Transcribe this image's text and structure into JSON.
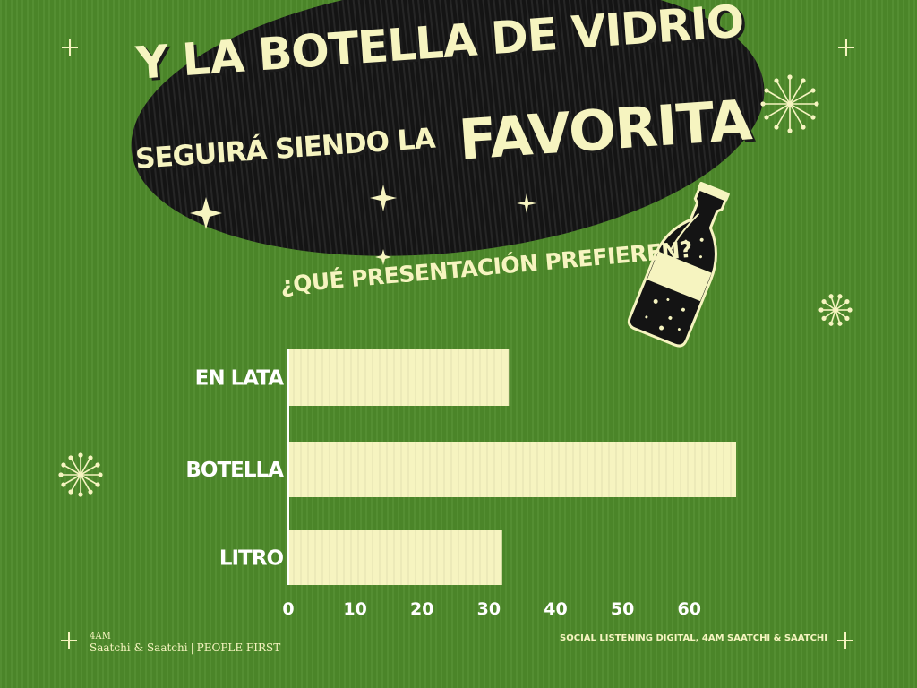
{
  "title": {
    "line1": "Y LA BOTELLA DE VIDRIO",
    "line2": "SEGUIRÁ SIENDO LA",
    "line3": "FAVORITA"
  },
  "subtitle": "¿QUÉ PRESENTACIÓN PREFIEREN?",
  "footer": {
    "brand_top": "4AM",
    "brand_main": "Saatchi & Saatchi",
    "brand_sep": "|",
    "brand_tagline": "PEOPLE FIRST",
    "source": "SOCIAL LISTENING DIGITAL, 4AM SAATCHI & SAATCHI"
  },
  "colors": {
    "background": "#4e8a2a",
    "bar": "#f6f4c0",
    "ellipse": "#141414",
    "text": "#f6f4c0"
  },
  "chart_data": {
    "type": "bar",
    "orientation": "horizontal",
    "categories": [
      "EN LATA",
      "BOTELLA",
      "LITRO"
    ],
    "values": [
      33,
      67,
      32
    ],
    "xlim": [
      0,
      67
    ],
    "xticks": [
      0,
      10,
      20,
      30,
      40,
      50,
      60
    ],
    "grid": false,
    "legend": "none"
  }
}
